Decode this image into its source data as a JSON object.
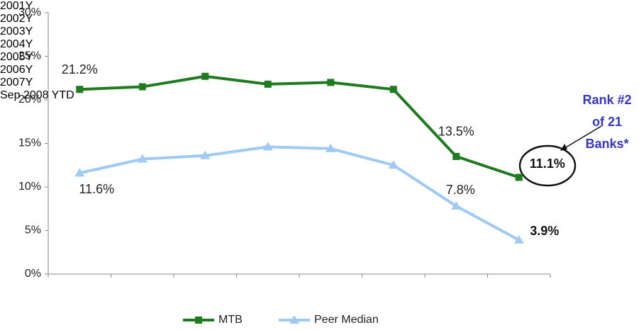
{
  "chart_data": {
    "type": "line",
    "categories": [
      "2001Y",
      "2002Y",
      "2003Y",
      "2004Y",
      "2005Y",
      "2006Y",
      "2007Y",
      "Sep 2008 YTD"
    ],
    "series": [
      {
        "name": "MTB",
        "color": "#1e7b1e",
        "marker": "square",
        "values": [
          21.2,
          21.5,
          22.7,
          21.8,
          22.0,
          21.2,
          13.5,
          11.1
        ],
        "value_labels": [
          "21.2%",
          null,
          null,
          null,
          null,
          null,
          "13.5%",
          "11.1%"
        ]
      },
      {
        "name": "Peer Median",
        "color": "#9fcaf4",
        "marker": "triangle",
        "values": [
          11.6,
          13.2,
          13.6,
          14.6,
          14.4,
          12.5,
          7.8,
          3.9
        ],
        "value_labels": [
          "11.6%",
          null,
          null,
          null,
          null,
          null,
          "7.8%",
          "3.9%"
        ]
      }
    ],
    "ylim": [
      0,
      30
    ],
    "yticks": [
      {
        "value": 0,
        "label": "0%"
      },
      {
        "value": 5,
        "label": "5%"
      },
      {
        "value": 10,
        "label": "10%"
      },
      {
        "value": 15,
        "label": "15%"
      },
      {
        "value": 20,
        "label": "20%"
      },
      {
        "value": 25,
        "label": "25%"
      },
      {
        "value": 30,
        "label": "30%"
      }
    ],
    "annotation": "Rank #2 of 21 Banks*",
    "legend": "bottom",
    "grid": false
  }
}
